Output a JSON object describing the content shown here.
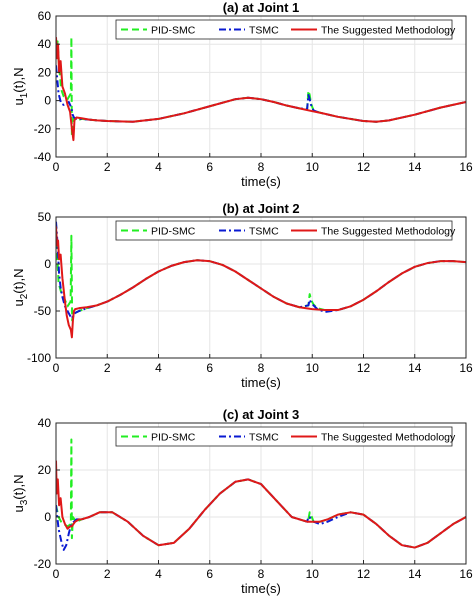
{
  "colors": {
    "pid_smc": "#22ee22",
    "tsmc": "#0a1ad2",
    "suggested": "#e01818",
    "grid": "#e6e6e6",
    "axis": "#262626"
  },
  "chart_data": [
    {
      "type": "line",
      "title": "(a) at Joint 1",
      "xlabel": "time(s)",
      "ylabel_main": "u",
      "ylabel_sub": "1",
      "ylabel_rest": "(t),N",
      "xlim": [
        0,
        16
      ],
      "ylim": [
        -40,
        60
      ],
      "xticks": [
        0,
        2,
        4,
        6,
        8,
        10,
        12,
        14,
        16
      ],
      "yticks": [
        -40,
        -20,
        0,
        20,
        40,
        60
      ],
      "grid": true,
      "legend_position": "top",
      "legend": [
        "PID-SMC",
        "TSMC",
        "The Suggested Methodology"
      ],
      "series": [
        {
          "name": "PID-SMC",
          "style": "dashed",
          "x": [
            0,
            0.06,
            0.12,
            0.2,
            0.3,
            0.45,
            0.58,
            0.6,
            0.62,
            0.66,
            0.7,
            0.8,
            1.0,
            1.3,
            1.6,
            2,
            3,
            4,
            5,
            6,
            7,
            7.5,
            8,
            8.5,
            9,
            9.5,
            9.8,
            9.85,
            9.9,
            9.95,
            10.05,
            10.2,
            10.4,
            11,
            12,
            12.5,
            13,
            14,
            15,
            16
          ],
          "y": [
            30,
            42,
            25,
            8,
            3,
            1,
            5,
            45,
            -25,
            -18,
            -12,
            -14,
            -13,
            -13.5,
            -14,
            -14.5,
            -15,
            -13,
            -9,
            -4,
            1,
            2,
            1,
            -1,
            -3.5,
            -5.5,
            -6,
            7,
            4,
            -2,
            -7,
            -8,
            -9,
            -11.5,
            -14.5,
            -15,
            -14,
            -10,
            -5,
            -1
          ]
        },
        {
          "name": "TSMC",
          "style": "dashdot",
          "x": [
            0,
            0.05,
            0.1,
            0.2,
            0.3,
            0.4,
            0.5,
            0.6,
            0.65,
            0.7,
            0.8,
            1.0,
            1.3,
            1.6,
            2,
            3,
            4,
            5,
            6,
            7,
            7.5,
            8,
            8.5,
            9,
            9.5,
            9.8,
            9.85,
            9.9,
            9.95,
            10.05,
            10.2,
            10.4,
            11,
            12,
            12.5,
            13,
            14,
            15,
            16
          ],
          "y": [
            25,
            15,
            5,
            -2,
            -3,
            -2,
            -1,
            -5,
            -10,
            -12,
            -13,
            -13,
            -13.5,
            -14,
            -14.5,
            -15,
            -13,
            -9,
            -4,
            1,
            2,
            1,
            -1,
            -3.5,
            -5.5,
            -6,
            4,
            1,
            -3,
            -7,
            -8,
            -9,
            -11.5,
            -14.5,
            -15,
            -14,
            -10,
            -5,
            -1
          ]
        },
        {
          "name": "The Suggested Methodology",
          "style": "solid",
          "x": [
            0,
            0.04,
            0.08,
            0.12,
            0.18,
            0.25,
            0.35,
            0.45,
            0.55,
            0.62,
            0.68,
            0.72,
            0.8,
            1.0,
            1.3,
            1.6,
            2,
            3,
            4,
            5,
            6,
            7,
            7.5,
            8,
            8.5,
            9,
            9.5,
            10,
            10.4,
            11,
            12,
            12.5,
            13,
            14,
            15,
            16
          ],
          "y": [
            45,
            30,
            40,
            20,
            28,
            10,
            5,
            -3,
            -8,
            -20,
            -28,
            -14,
            -12,
            -12.5,
            -13.5,
            -14,
            -14.5,
            -15,
            -13,
            -9,
            -4,
            1,
            2,
            1,
            -1,
            -3.5,
            -5.5,
            -7.5,
            -9,
            -11.5,
            -14.5,
            -15,
            -14,
            -10,
            -5,
            -1
          ]
        }
      ]
    },
    {
      "type": "line",
      "title": "(b) at Joint 2",
      "xlabel": "time(s)",
      "ylabel_main": "u",
      "ylabel_sub": "2",
      "ylabel_rest": "(t),N",
      "xlim": [
        0,
        16
      ],
      "ylim": [
        -100,
        50
      ],
      "xticks": [
        0,
        2,
        4,
        6,
        8,
        10,
        12,
        14,
        16
      ],
      "yticks": [
        -100,
        -50,
        0,
        50
      ],
      "grid": true,
      "legend_position": "top",
      "legend": [
        "PID-SMC",
        "TSMC",
        "The Suggested Methodology"
      ],
      "series": [
        {
          "name": "PID-SMC",
          "style": "dashed",
          "x": [
            0,
            0.05,
            0.1,
            0.2,
            0.3,
            0.45,
            0.57,
            0.6,
            0.63,
            0.68,
            0.75,
            0.9,
            1.2,
            1.6,
            2,
            2.5,
            3,
            3.5,
            4,
            4.5,
            5,
            5.5,
            6,
            6.5,
            7,
            7.5,
            8,
            8.5,
            9,
            9.5,
            9.85,
            9.9,
            9.95,
            10.05,
            10.2,
            10.5,
            11,
            11.5,
            12,
            12.5,
            13,
            13.5,
            14,
            14.5,
            15,
            15.5,
            16
          ],
          "y": [
            35,
            10,
            -20,
            -30,
            -35,
            -45,
            -40,
            30,
            -60,
            -55,
            -52,
            -50,
            -47,
            -44,
            -40,
            -33,
            -25,
            -16,
            -8,
            -2,
            2,
            4,
            3,
            -1,
            -8,
            -17,
            -26,
            -35,
            -42,
            -46,
            -44,
            -32,
            -38,
            -43,
            -47,
            -49,
            -49,
            -45,
            -38,
            -29,
            -19,
            -10,
            -3,
            1,
            3,
            3,
            2
          ]
        },
        {
          "name": "TSMC",
          "style": "dashdot",
          "x": [
            0,
            0.04,
            0.08,
            0.12,
            0.18,
            0.25,
            0.35,
            0.45,
            0.55,
            0.62,
            0.68,
            0.75,
            0.9,
            1.2,
            1.6,
            2,
            2.5,
            3,
            3.5,
            4,
            4.5,
            5,
            5.5,
            6,
            6.5,
            7,
            7.5,
            8,
            8.5,
            9,
            9.5,
            9.85,
            9.9,
            9.95,
            10.05,
            10.2,
            10.5,
            11,
            11.5,
            12,
            12.5,
            13,
            13.5,
            14,
            14.5,
            15,
            15.5,
            16
          ],
          "y": [
            45,
            30,
            10,
            -10,
            -25,
            -35,
            -45,
            -50,
            -55,
            -58,
            -54,
            -52,
            -50,
            -47,
            -44,
            -40,
            -33,
            -25,
            -16,
            -8,
            -2,
            2,
            4,
            3,
            -1,
            -8,
            -17,
            -26,
            -35,
            -42,
            -46,
            -44,
            -38,
            -41,
            -44,
            -48,
            -51,
            -49,
            -45,
            -38,
            -29,
            -19,
            -10,
            -3,
            1,
            3,
            3,
            2
          ]
        },
        {
          "name": "The Suggested Methodology",
          "style": "solid",
          "x": [
            0,
            0.04,
            0.08,
            0.12,
            0.18,
            0.25,
            0.35,
            0.42,
            0.5,
            0.58,
            0.62,
            0.66,
            0.7,
            0.75,
            0.9,
            1.2,
            1.6,
            2,
            2.5,
            3,
            3.5,
            4,
            4.5,
            5,
            5.5,
            6,
            6.5,
            7,
            7.5,
            8,
            8.5,
            9,
            9.5,
            10,
            10.5,
            11,
            11.5,
            12,
            12.5,
            13,
            13.5,
            14,
            14.5,
            15,
            15.5,
            16
          ],
          "y": [
            40,
            20,
            25,
            5,
            10,
            -15,
            -40,
            -55,
            -65,
            -70,
            -78,
            -60,
            -50,
            -48,
            -47,
            -46,
            -44,
            -40,
            -33,
            -25,
            -16,
            -8,
            -2,
            2,
            4,
            3,
            -1,
            -8,
            -17,
            -26,
            -35,
            -42,
            -46,
            -48,
            -49,
            -49,
            -45,
            -38,
            -29,
            -19,
            -10,
            -3,
            1,
            3,
            3,
            2
          ]
        }
      ]
    },
    {
      "type": "line",
      "title": "(c) at Joint 3",
      "xlabel": "time(s)",
      "ylabel_main": "u",
      "ylabel_sub": "3",
      "ylabel_rest": "(t),N",
      "xlim": [
        0,
        16
      ],
      "ylim": [
        -20,
        40
      ],
      "xticks": [
        0,
        2,
        4,
        6,
        8,
        10,
        12,
        14,
        16
      ],
      "yticks": [
        -20,
        0,
        20,
        40
      ],
      "grid": true,
      "legend_position": "top",
      "legend": [
        "PID-SMC",
        "TSMC",
        "The Suggested Methodology"
      ],
      "series": [
        {
          "name": "PID-SMC",
          "style": "dashed",
          "x": [
            0,
            0.1,
            0.2,
            0.3,
            0.45,
            0.58,
            0.6,
            0.62,
            0.66,
            0.72,
            0.8,
            1.0,
            1.3,
            1.7,
            2.2,
            2.8,
            3.4,
            4.0,
            4.6,
            5.2,
            5.8,
            6.4,
            7.0,
            7.5,
            8.0,
            8.6,
            9.2,
            9.8,
            9.85,
            9.9,
            9.95,
            10.05,
            10.3,
            10.6,
            11.0,
            11.5,
            12.0,
            12.5,
            13.0,
            13.5,
            14.0,
            14.5,
            15.0,
            15.5,
            16
          ],
          "y": [
            5,
            0,
            -2,
            -3,
            -4,
            -3,
            33,
            -9,
            0,
            -1,
            -2,
            -1,
            0,
            2,
            2,
            -2,
            -8,
            -12,
            -11,
            -5,
            3,
            10,
            15,
            16,
            14,
            7,
            0,
            -2,
            -1,
            2,
            1,
            -2,
            -2,
            -1,
            1,
            2,
            1,
            -3,
            -8,
            -12,
            -13,
            -11,
            -7,
            -3,
            0
          ]
        },
        {
          "name": "TSMC",
          "style": "dashdot",
          "x": [
            0,
            0.05,
            0.1,
            0.2,
            0.3,
            0.4,
            0.5,
            0.6,
            0.7,
            0.8,
            1.0,
            1.3,
            1.7,
            2.2,
            2.8,
            3.4,
            4.0,
            4.6,
            5.2,
            5.8,
            6.4,
            7.0,
            7.5,
            8.0,
            8.6,
            9.2,
            9.8,
            9.85,
            9.9,
            9.95,
            10.05,
            10.3,
            10.6,
            11.0,
            11.5,
            12.0,
            12.5,
            13.0,
            13.5,
            14.0,
            14.5,
            15.0,
            15.5,
            16
          ],
          "y": [
            5,
            0,
            -5,
            -10,
            -14,
            -12,
            -7,
            -3,
            -2,
            -1,
            -1,
            0,
            2,
            2,
            -2,
            -8,
            -12,
            -11,
            -5,
            3,
            10,
            15,
            16,
            14,
            7,
            0,
            -2,
            0,
            0,
            -1,
            -2,
            -3,
            -2,
            0,
            2,
            1,
            -3,
            -8,
            -12,
            -13,
            -11,
            -7,
            -3,
            0
          ]
        },
        {
          "name": "The Suggested Methodology",
          "style": "solid",
          "x": [
            0,
            0.03,
            0.07,
            0.12,
            0.18,
            0.25,
            0.35,
            0.45,
            0.55,
            0.62,
            0.68,
            0.75,
            0.9,
            1.0,
            1.3,
            1.7,
            2.2,
            2.8,
            3.4,
            4.0,
            4.6,
            5.2,
            5.8,
            6.4,
            7.0,
            7.5,
            8.0,
            8.6,
            9.2,
            9.8,
            10.3,
            10.6,
            11.0,
            11.5,
            12.0,
            12.5,
            13.0,
            13.5,
            14.0,
            14.5,
            15.0,
            15.5,
            16
          ],
          "y": [
            24,
            10,
            16,
            5,
            8,
            0,
            -3,
            -5,
            -4,
            -4,
            -3,
            -2,
            -1,
            -1,
            0,
            2,
            2,
            -2,
            -8,
            -12,
            -11,
            -5,
            3,
            10,
            15,
            16,
            14,
            7,
            0,
            -2,
            -2,
            -1,
            1,
            2,
            1,
            -3,
            -8,
            -12,
            -13,
            -11,
            -7,
            -3,
            0
          ]
        }
      ]
    }
  ]
}
